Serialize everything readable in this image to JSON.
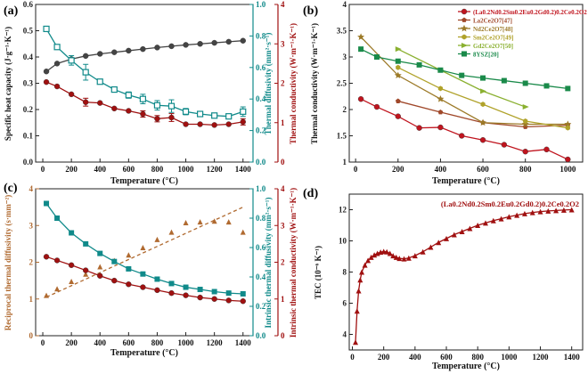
{
  "chart_data": [
    {
      "panel_label": "(a)",
      "type": "line",
      "xlabel": "Temperature (°C)",
      "xlim": [
        -50,
        1470
      ],
      "xticks": [
        0,
        200,
        400,
        600,
        800,
        1000,
        1200,
        1400
      ],
      "axes": {
        "left": {
          "label": "Specific heat capacity (J·g⁻¹·K⁻¹)",
          "lim": [
            0.0,
            0.6
          ],
          "ticks": [
            0.0,
            0.1,
            0.2,
            0.3,
            0.4,
            0.5,
            0.6
          ],
          "color": "#222222"
        },
        "right1": {
          "label": "Thermal diffusivity (mm²·s⁻¹)",
          "lim": [
            0.0,
            1.0
          ],
          "ticks": [
            0.0,
            0.2,
            0.4,
            0.6,
            0.8,
            1.0
          ],
          "color": "#108a8a"
        },
        "right2": {
          "label": "Thermal conductivity (W·m⁻¹·K⁻¹)",
          "lim": [
            0,
            4
          ],
          "ticks": [
            0,
            1,
            2,
            3,
            4
          ],
          "color": "#a01010"
        }
      },
      "series": [
        {
          "axis": "left",
          "color": "#444444",
          "marker": "circle",
          "x": [
            25,
            100,
            200,
            300,
            400,
            500,
            600,
            700,
            800,
            900,
            1000,
            1100,
            1200,
            1300,
            1400
          ],
          "y": [
            0.345,
            0.375,
            0.392,
            0.404,
            0.412,
            0.418,
            0.424,
            0.43,
            0.436,
            0.441,
            0.446,
            0.45,
            0.454,
            0.458,
            0.462
          ]
        },
        {
          "axis": "right1",
          "color": "#108a8a",
          "marker": "square-open",
          "x": [
            25,
            100,
            200,
            300,
            400,
            500,
            600,
            700,
            800,
            900,
            1000,
            1100,
            1200,
            1300,
            1400
          ],
          "y": [
            0.845,
            0.73,
            0.645,
            0.57,
            0.51,
            0.46,
            0.425,
            0.4,
            0.36,
            0.355,
            0.32,
            0.305,
            0.295,
            0.29,
            0.32
          ],
          "err": [
            0,
            0,
            0.03,
            0.05,
            0,
            0,
            0.02,
            0.03,
            0.03,
            0.04,
            0.02,
            0,
            0,
            0,
            0.03
          ]
        },
        {
          "axis": "right2",
          "color": "#a01010",
          "marker": "circle",
          "x": [
            25,
            100,
            200,
            300,
            400,
            500,
            600,
            700,
            800,
            900,
            1000,
            1100,
            1200,
            1300,
            1400
          ],
          "y": [
            2.03,
            1.92,
            1.72,
            1.52,
            1.5,
            1.36,
            1.3,
            1.22,
            1.1,
            1.13,
            0.96,
            0.96,
            0.94,
            0.96,
            1.02
          ],
          "err": [
            0,
            0,
            0,
            0.1,
            0,
            0,
            0,
            0.08,
            0.08,
            0.1,
            0,
            0,
            0,
            0,
            0.08
          ]
        }
      ]
    },
    {
      "panel_label": "(b)",
      "type": "line",
      "xlabel": "Temperature (°C)",
      "ylabel": "Thermal conductivity (W·m⁻¹·K⁻¹)",
      "xlim": [
        -30,
        1070
      ],
      "ylim": [
        1.0,
        4.0
      ],
      "xticks": [
        0,
        200,
        400,
        600,
        800,
        1000
      ],
      "yticks": [
        1.0,
        1.5,
        2.0,
        2.5,
        3.0,
        3.5,
        4.0
      ],
      "legend_position": "top-right",
      "series": [
        {
          "name": "(La0.2Nd0.2Sm0.2Eu0.2Gd0.2)0.2Ce0.2O2",
          "color": "#c0141e",
          "marker": "circle",
          "x": [
            25,
            100,
            200,
            300,
            400,
            500,
            600,
            700,
            800,
            900,
            1000
          ],
          "y": [
            2.2,
            2.05,
            1.87,
            1.65,
            1.66,
            1.5,
            1.42,
            1.33,
            1.2,
            1.24,
            1.05
          ]
        },
        {
          "name": "La2Ce2O7[47]",
          "color": "#a0482a",
          "marker": "pentagon",
          "x": [
            200,
            400,
            600,
            800,
            1000
          ],
          "y": [
            2.16,
            1.95,
            1.75,
            1.67,
            1.7
          ]
        },
        {
          "name": "Nd2Ce2O7[48]",
          "color": "#9c7a28",
          "marker": "star",
          "x": [
            25,
            200,
            400,
            600,
            800,
            1000
          ],
          "y": [
            3.38,
            2.65,
            2.2,
            1.75,
            1.72,
            1.72
          ]
        },
        {
          "name": "Sm2Ce2O7[49]",
          "color": "#b0a22a",
          "marker": "hexagon",
          "x": [
            200,
            400,
            600,
            800,
            1000
          ],
          "y": [
            2.8,
            2.4,
            2.1,
            1.78,
            1.65
          ]
        },
        {
          "name": "Gd2Ce2O7[50]",
          "color": "#8ab030",
          "marker": "triangle-right",
          "x": [
            200,
            400,
            600,
            800
          ],
          "y": [
            3.15,
            2.75,
            2.35,
            2.05
          ]
        },
        {
          "name": "8YSZ[20]",
          "color": "#1a8a4a",
          "marker": "square",
          "x": [
            25,
            100,
            200,
            300,
            400,
            500,
            600,
            700,
            800,
            900,
            1000
          ],
          "y": [
            3.15,
            3.0,
            2.92,
            2.85,
            2.75,
            2.65,
            2.6,
            2.55,
            2.5,
            2.45,
            2.4
          ]
        }
      ]
    },
    {
      "panel_label": "(c)",
      "type": "line",
      "xlabel": "Temperature (°C)",
      "xlim": [
        -50,
        1470
      ],
      "xticks": [
        0,
        200,
        400,
        600,
        800,
        1000,
        1200,
        1400
      ],
      "axes": {
        "left": {
          "label": "Reciprocal thermal diffusivity (s·mm⁻²)",
          "lim": [
            0,
            4
          ],
          "ticks": [
            0,
            1,
            2,
            3,
            4
          ],
          "color": "#b06a30"
        },
        "right1": {
          "label": "Intrinsic thermal diffusivity (mm²·s⁻¹)",
          "lim": [
            0.0,
            1.0
          ],
          "ticks": [
            0.0,
            0.2,
            0.4,
            0.6,
            0.8,
            1.0
          ],
          "color": "#108a8a"
        },
        "right2": {
          "label": "Intrinsic thermal conductivity (W·m⁻¹·K⁻¹)",
          "lim": [
            0,
            4
          ],
          "ticks": [
            0,
            1,
            2,
            3,
            4
          ],
          "color": "#a01010"
        }
      },
      "series": [
        {
          "axis": "left",
          "color": "#b06a30",
          "marker": "triangle",
          "x": [
            25,
            100,
            200,
            300,
            400,
            500,
            600,
            700,
            800,
            900,
            1000,
            1100,
            1200,
            1300,
            1400
          ],
          "y": [
            1.1,
            1.28,
            1.48,
            1.68,
            1.88,
            2.05,
            2.2,
            2.4,
            2.62,
            2.82,
            3.08,
            3.1,
            3.12,
            3.1,
            2.82
          ],
          "fit": {
            "x": [
              25,
              1400
            ],
            "y": [
              1.05,
              3.5
            ]
          }
        },
        {
          "axis": "right1",
          "color": "#108a8a",
          "marker": "square",
          "x": [
            25,
            100,
            200,
            300,
            400,
            500,
            600,
            700,
            800,
            900,
            1000,
            1100,
            1200,
            1300,
            1400
          ],
          "y": [
            0.9,
            0.8,
            0.7,
            0.625,
            0.56,
            0.505,
            0.455,
            0.42,
            0.385,
            0.355,
            0.33,
            0.315,
            0.3,
            0.29,
            0.285
          ]
        },
        {
          "axis": "right2",
          "color": "#a01010",
          "marker": "circle",
          "x": [
            25,
            100,
            200,
            300,
            400,
            500,
            600,
            700,
            800,
            900,
            1000,
            1100,
            1200,
            1300,
            1400
          ],
          "y": [
            2.15,
            2.05,
            1.92,
            1.78,
            1.63,
            1.5,
            1.4,
            1.32,
            1.24,
            1.16,
            1.1,
            1.04,
            1.0,
            0.96,
            0.94
          ]
        }
      ]
    },
    {
      "panel_label": "(d)",
      "type": "line",
      "title": "(La0.2Nd0.2Sm0.2Eu0.2Gd0.2)0.2Ce0.2O2",
      "xlabel": "Temperature (°C)",
      "ylabel": "TEC (10⁻⁶ K⁻¹)",
      "xlim": [
        -20,
        1470
      ],
      "ylim": [
        3,
        13
      ],
      "xticks": [
        0,
        200,
        400,
        600,
        800,
        1000,
        1200,
        1400
      ],
      "yticks": [
        4,
        6,
        8,
        10,
        12
      ],
      "series": [
        {
          "color": "#a01010",
          "marker": "triangle",
          "x": [
            20,
            30,
            40,
            50,
            60,
            80,
            100,
            120,
            140,
            160,
            180,
            200,
            220,
            240,
            260,
            280,
            300,
            330,
            360,
            400,
            450,
            500,
            550,
            600,
            650,
            700,
            750,
            800,
            850,
            900,
            950,
            1000,
            1050,
            1100,
            1150,
            1200,
            1250,
            1300,
            1350,
            1400
          ],
          "y": [
            3.5,
            5.5,
            6.8,
            7.5,
            8.0,
            8.45,
            8.75,
            8.95,
            9.1,
            9.2,
            9.28,
            9.32,
            9.3,
            9.2,
            9.05,
            8.95,
            8.88,
            8.85,
            8.9,
            9.05,
            9.3,
            9.6,
            9.9,
            10.15,
            10.4,
            10.6,
            10.8,
            11.0,
            11.15,
            11.3,
            11.42,
            11.55,
            11.65,
            11.75,
            11.82,
            11.88,
            11.92,
            11.95,
            11.98,
            12.0
          ]
        }
      ]
    }
  ]
}
